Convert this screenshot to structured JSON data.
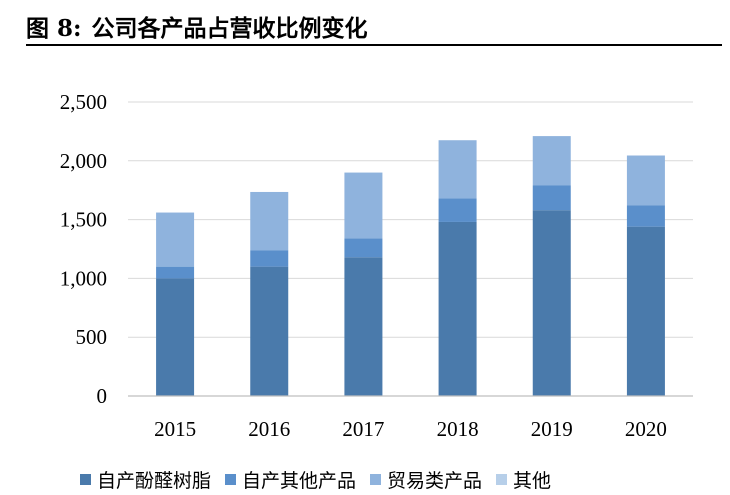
{
  "figure": {
    "label": "图 8:",
    "title": "公司各产品占营收比例变化"
  },
  "chart_data": {
    "type": "bar",
    "stacked": true,
    "categories": [
      "2015",
      "2016",
      "2017",
      "2018",
      "2019",
      "2020"
    ],
    "series": [
      {
        "name": "自产酚醛树脂",
        "color": "#4a7aab",
        "values": [
          1000,
          1100,
          1180,
          1480,
          1580,
          1440
        ]
      },
      {
        "name": "自产其他产品",
        "color": "#5a8fcb",
        "values": [
          100,
          140,
          160,
          200,
          210,
          180
        ]
      },
      {
        "name": "贸易类产品",
        "color": "#8fb3dd",
        "values": [
          460,
          495,
          560,
          495,
          420,
          425
        ]
      },
      {
        "name": "其他",
        "color": "#b7cfe9",
        "values": [
          0,
          0,
          0,
          0,
          0,
          0
        ]
      }
    ],
    "ylim": [
      0,
      2500
    ],
    "yticks": [
      "0",
      "500",
      "1,000",
      "1,500",
      "2,000",
      "2,500"
    ],
    "ytick_values": [
      0,
      500,
      1000,
      1500,
      2000,
      2500
    ],
    "grid": true,
    "legend_position": "bottom"
  }
}
